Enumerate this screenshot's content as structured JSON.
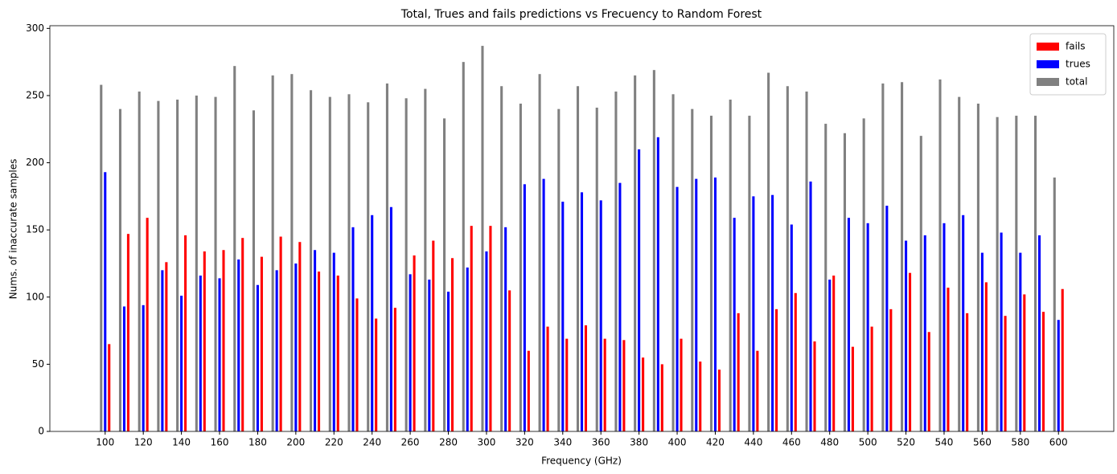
{
  "chart_data": {
    "type": "bar",
    "title": "Total, Trues and fails predictions vs Frecuency to Random Forest",
    "xlabel": "Frequency (GHz)",
    "ylabel": "Nums. of inaccurate samples",
    "x": [
      100,
      110,
      120,
      130,
      140,
      150,
      160,
      170,
      180,
      190,
      200,
      210,
      220,
      230,
      240,
      250,
      260,
      270,
      280,
      290,
      300,
      310,
      320,
      330,
      340,
      350,
      360,
      370,
      380,
      390,
      400,
      410,
      420,
      430,
      440,
      450,
      460,
      470,
      480,
      490,
      500,
      510,
      520,
      530,
      540,
      550,
      560,
      570,
      580,
      590,
      600
    ],
    "series": [
      {
        "name": "fails",
        "color": "#ff0000",
        "values": [
          65,
          147,
          159,
          126,
          146,
          134,
          135,
          144,
          130,
          145,
          141,
          119,
          116,
          99,
          84,
          92,
          131,
          142,
          129,
          153,
          153,
          105,
          60,
          78,
          69,
          79,
          69,
          68,
          55,
          50,
          69,
          52,
          46,
          88,
          60,
          91,
          103,
          67,
          116,
          63,
          78,
          91,
          118,
          74,
          107,
          88,
          111,
          86,
          102,
          89,
          106
        ]
      },
      {
        "name": "trues",
        "color": "#0000ff",
        "values": [
          193,
          93,
          94,
          120,
          101,
          116,
          114,
          128,
          109,
          120,
          125,
          135,
          133,
          152,
          161,
          167,
          117,
          113,
          104,
          122,
          134,
          152,
          184,
          188,
          171,
          178,
          172,
          185,
          210,
          219,
          182,
          188,
          189,
          159,
          175,
          176,
          154,
          186,
          113,
          159,
          155,
          168,
          142,
          146,
          155,
          161,
          133,
          148,
          133,
          146,
          83
        ]
      },
      {
        "name": "total",
        "color": "#808080",
        "values": [
          258,
          240,
          253,
          246,
          247,
          250,
          249,
          272,
          239,
          265,
          266,
          254,
          249,
          251,
          245,
          259,
          248,
          255,
          233,
          275,
          287,
          257,
          244,
          266,
          240,
          257,
          241,
          253,
          265,
          269,
          251,
          240,
          235,
          247,
          235,
          267,
          257,
          253,
          229,
          222,
          233,
          259,
          260,
          220,
          262,
          249,
          244,
          234,
          235,
          235,
          189
        ]
      }
    ],
    "xlim": [
      71,
      629
    ],
    "ylim": [
      0,
      302
    ],
    "xticks": [
      100,
      120,
      140,
      160,
      180,
      200,
      220,
      240,
      260,
      280,
      300,
      320,
      340,
      360,
      380,
      400,
      420,
      440,
      460,
      480,
      500,
      520,
      540,
      560,
      580,
      600
    ],
    "yticks": [
      0,
      50,
      100,
      150,
      200,
      250,
      300
    ],
    "legend": "upper right"
  }
}
